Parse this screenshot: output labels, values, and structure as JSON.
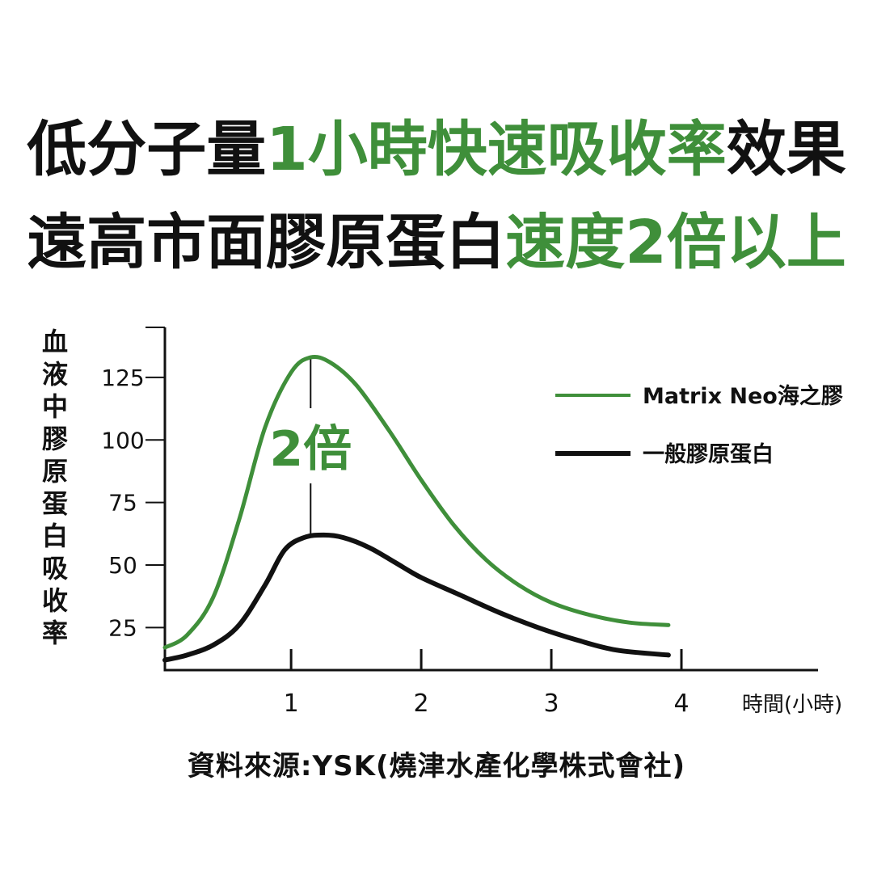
{
  "title": {
    "line1": {
      "part1": "低分子量",
      "part2": "1小時快速吸收率",
      "part3": "效果"
    },
    "line2": {
      "part1": "遠高市面膠原蛋白",
      "part2": "速度2倍以上"
    }
  },
  "colors": {
    "accent": "#3f8f3a",
    "text": "#111111"
  },
  "chart_data": {
    "type": "line",
    "ylabel": "血液中膠原蛋白吸收率",
    "xlabel": "時間(小時)",
    "x_ticks": [
      "1",
      "2",
      "3",
      "4"
    ],
    "y_ticks": [
      "25",
      "50",
      "75",
      "100",
      "125"
    ],
    "xlim": [
      0.03,
      5.05
    ],
    "ylim": [
      8,
      145
    ],
    "annotation": "2倍",
    "annotation_x": 1.15,
    "legend_position": "right",
    "grid": false,
    "series": [
      {
        "name": "Matrix Neo海之膠",
        "color": "#3f8f3a",
        "x": [
          0.03,
          0.2,
          0.4,
          0.6,
          0.8,
          1.0,
          1.15,
          1.3,
          1.5,
          1.75,
          2.0,
          2.25,
          2.5,
          2.75,
          3.0,
          3.3,
          3.6,
          3.9
        ],
        "y": [
          17,
          22,
          37,
          68,
          105,
          127,
          133,
          131,
          122,
          104,
          84,
          66,
          52,
          42,
          35,
          30,
          27,
          26
        ]
      },
      {
        "name": "一般膠原蛋白",
        "color": "#111111",
        "x": [
          0.03,
          0.2,
          0.4,
          0.6,
          0.8,
          0.95,
          1.1,
          1.25,
          1.4,
          1.6,
          1.8,
          2.0,
          2.3,
          2.6,
          2.9,
          3.2,
          3.5,
          3.9
        ],
        "y": [
          12,
          14,
          18,
          26,
          42,
          56,
          61,
          62,
          61,
          57,
          51,
          45,
          38,
          31,
          25,
          20,
          16,
          14
        ]
      }
    ]
  },
  "source": "資料來源:YSK(燒津水產化學株式會社)"
}
